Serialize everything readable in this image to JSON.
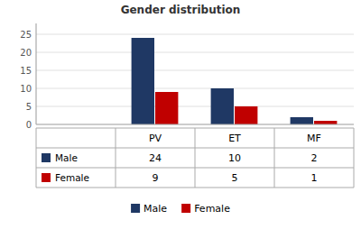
{
  "chart_data": {
    "type": "bar",
    "title": "Gender distribution",
    "categories": [
      "PV",
      "ET",
      "MF"
    ],
    "series": [
      {
        "name": "Male",
        "color": "#1F3864",
        "values": [
          24,
          10,
          2
        ]
      },
      {
        "name": "Female",
        "color": "#C00000",
        "values": [
          9,
          5,
          1
        ]
      }
    ],
    "ylim": [
      0,
      28
    ],
    "yticks": [
      0,
      5,
      10,
      15,
      20,
      25
    ],
    "grid": true,
    "legend": "bottom",
    "tick_labels": "y"
  }
}
